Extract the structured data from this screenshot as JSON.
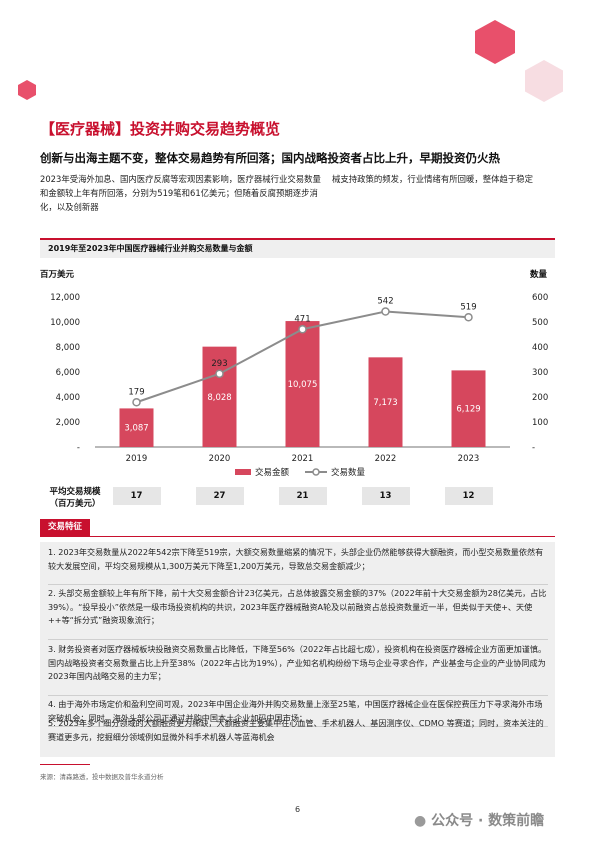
{
  "header": {
    "title": "【医疗器械】投资并购交易趋势概览",
    "subtitle": "创新与出海主题不变，整体交易趋势有所回落；国内战略投资者占比上升，早期投资仍火热"
  },
  "intro": {
    "left": "2023年受海外加息、国内医疗反腐等宏观因素影响，医疗器械行业交易数量和金额较上年有所回落，分别为519笔和61亿美元；但随着反腐预期逐步消化，以及创新器",
    "right": "械支持政策的频发，行业情绪有所回暖，整体趋于稳定"
  },
  "chart_data": {
    "type": "bar",
    "title": "2019年至2023年中国医疗器械行业并购交易数量与金额",
    "categories": [
      "2019",
      "2020",
      "2021",
      "2022",
      "2023"
    ],
    "series": [
      {
        "name": "交易金额",
        "type": "bar",
        "axis": "left",
        "color": "#d6475d",
        "values": [
          3087,
          8028,
          10075,
          7173,
          6129
        ]
      },
      {
        "name": "交易数量",
        "type": "line",
        "axis": "right",
        "color": "#8c8c8c",
        "values": [
          179,
          293,
          471,
          542,
          519
        ]
      }
    ],
    "bar_labels": [
      "3,087",
      "8,028",
      "10,075",
      "7,173",
      "6,129"
    ],
    "line_labels": [
      "179",
      "293",
      "471",
      "542",
      "519"
    ],
    "ylabel": "百万美元",
    "y2label": "数量",
    "ylim": [
      0,
      12000
    ],
    "y2lim": [
      0,
      600
    ],
    "yticks": [
      "-",
      "2,000",
      "4,000",
      "6,000",
      "8,000",
      "10,000",
      "12,000"
    ],
    "y2ticks": [
      "-",
      "100",
      "200",
      "300",
      "400",
      "500",
      "600"
    ],
    "legend_position": "bottom",
    "grid": false
  },
  "avg": {
    "label_line1": "平均交易规模",
    "label_line2": "（百万美元）",
    "values": [
      "17",
      "27",
      "21",
      "13",
      "12"
    ]
  },
  "features": {
    "tag": "交易特征",
    "items": [
      "1. 2023年交易数量从2022年542宗下降至519宗，大额交易数量缩紧的情况下，头部企业仍然能够获得大额融资，而小型交易数量依然有较大发展空间，平均交易规模从1,300万美元下降至1,200万美元，导致总交易金额减少；",
      "2. 头部交易金额较上年有所下降，前十大交易金额合计23亿美元，占总体披露交易金额的37%（2022年前十大交易金额为28亿美元，占比39%）。“投早投小”依然是一级市场投资机构的共识，2023年医疗器械融资A轮及以前融资占总投资数量近一半，但类似于天使+、天使++等“拆分式”融资现象流行；",
      "3. 财务投资者对医疗器械板块投融资交易数量占比降低，下降至56%（2022年占比超七成），投资机构在投资医疗器械企业方面更加谨慎。国内战略投资者交易数量占比上升至38%（2022年占比为19%），产业知名机构纷纷下场与企业寻求合作，产业基金与企业的产业协同成为2023年国内战略交易的主力军；",
      "4. 由于海外市场定价和盈利空间可观，2023年中国企业海外并购交易数量上涨至25笔，中国医疗器械企业在医保控费压力下寻求海外市场突破机会；同时，海外头部公司正通过并购中国本土企业加码中国市场；",
      "5. 2023年多个细分领域的大额融资更为稀缺，大额融资主要集中在心血管、手术机器人、基因测序仪、CDMO 等赛道；同时，资本关注的赛道更多元，挖掘细分领域例如显微外科手术机器人等蓝海机会"
    ]
  },
  "footer": {
    "source": "来源：清森路透，投中数据及普华永道分析",
    "page": "6",
    "watermark": "公众号 · 数策前瞻"
  },
  "colors": {
    "accent": "#c8102e",
    "bar": "#d6475d",
    "line": "#8c8c8c",
    "hex_pink": "#e8506b",
    "hex_light": "#f7dde2"
  }
}
